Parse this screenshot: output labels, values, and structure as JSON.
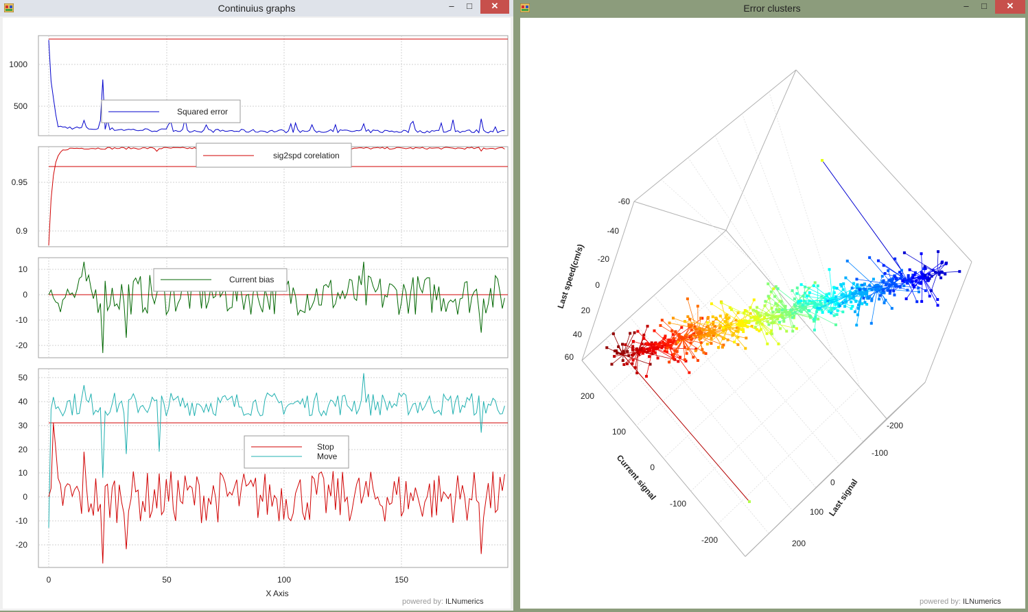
{
  "left_window": {
    "title": "Continuius graphs",
    "powered_prefix": "powered by:",
    "powered_brand": "ILNumerics",
    "x_axis_label": "X Axis",
    "x_ticks": [
      "0",
      "50",
      "100",
      "150"
    ],
    "panels": [
      {
        "legend": [
          "Squared error"
        ],
        "y_ticks": [
          "1000",
          "500"
        ]
      },
      {
        "legend": [
          "sig2spd corelation"
        ],
        "y_ticks": [
          "0.95",
          "0.9"
        ]
      },
      {
        "legend": [
          "Current bias"
        ],
        "y_ticks": [
          "10",
          "0",
          "-10",
          "-20"
        ]
      },
      {
        "legend": [
          "Stop",
          "Move"
        ],
        "y_ticks": [
          "50",
          "40",
          "30",
          "20",
          "10",
          "0",
          "-10",
          "-20"
        ]
      }
    ],
    "colors": {
      "red": "#d00000",
      "blue": "#0000cc",
      "green": "#006600",
      "cyan": "#20b0b0"
    }
  },
  "right_window": {
    "title": "Error clusters",
    "powered_prefix": "powered by:",
    "powered_brand": "ILNumerics",
    "axis_z_label": "Last speed(cm/s)",
    "axis_x_label": "Current signal",
    "axis_y_label": "Last signal",
    "z_ticks": [
      "-60",
      "-40",
      "-20",
      "0",
      "20",
      "40",
      "60"
    ],
    "x_ticks": [
      "200",
      "100",
      "0",
      "-100",
      "-200"
    ],
    "y_ticks": [
      "-200",
      "-100",
      "0",
      "100",
      "200"
    ]
  },
  "window_controls": {
    "minimize": "–",
    "maximize": "□",
    "close": "✕"
  }
}
